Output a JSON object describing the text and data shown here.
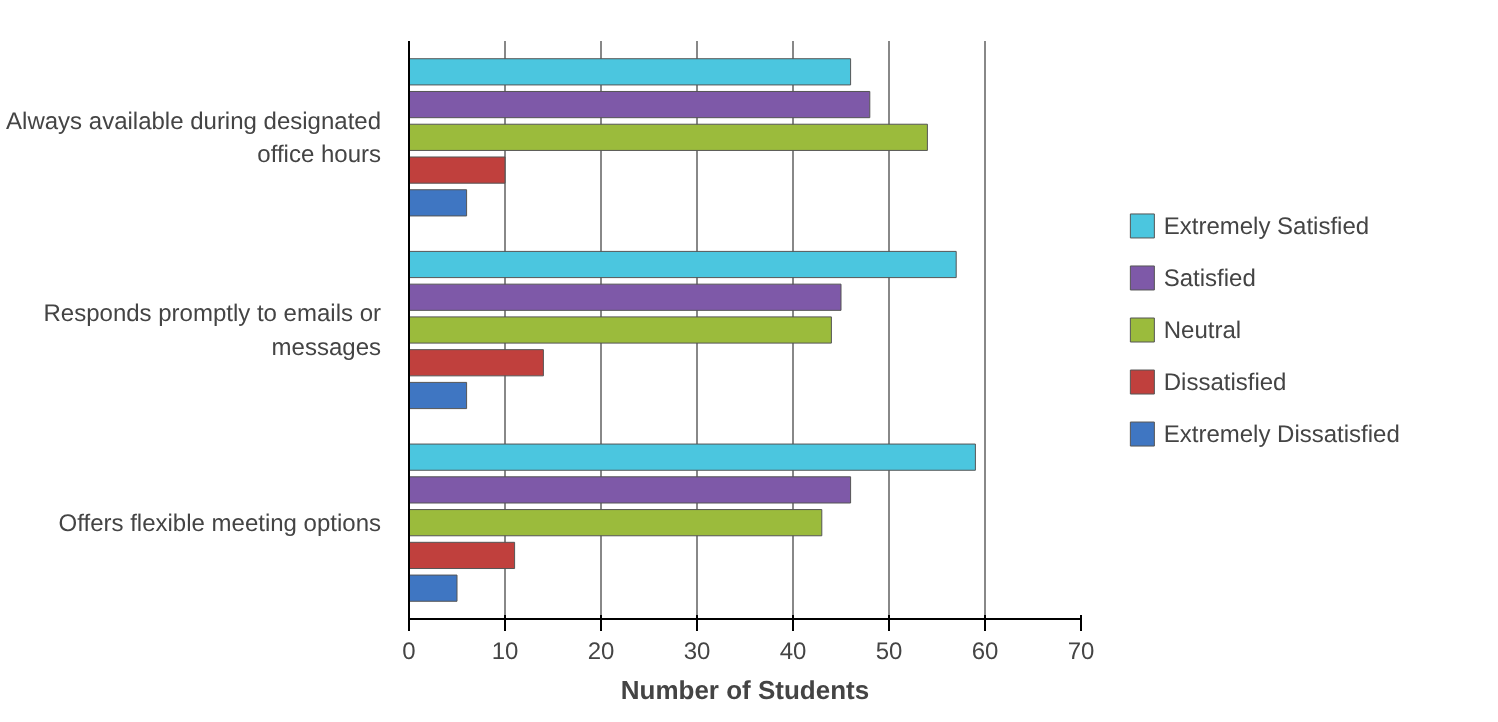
{
  "chart_data": {
    "type": "bar",
    "orientation": "horizontal",
    "xlabel": "Number of Students",
    "categories": [
      "Always available during designated office hours",
      "Responds promptly to emails or messages",
      "Offers flexible meeting options"
    ],
    "series": [
      {
        "name": "Extremely Satisfied",
        "color": "#4bc6df",
        "values": [
          46,
          57,
          59
        ]
      },
      {
        "name": "Satisfied",
        "color": "#7e59a8",
        "values": [
          48,
          45,
          46
        ]
      },
      {
        "name": "Neutral",
        "color": "#9bbb3c",
        "values": [
          54,
          44,
          43
        ]
      },
      {
        "name": "Dissatisfied",
        "color": "#c0403d",
        "values": [
          10,
          14,
          11
        ]
      },
      {
        "name": "Extremely Dissatisfied",
        "color": "#3f76c2",
        "values": [
          6,
          6,
          5
        ]
      }
    ],
    "xlim": [
      0,
      70
    ],
    "xticks": [
      0,
      10,
      20,
      30,
      40,
      50,
      60,
      70
    ],
    "grid": "x",
    "legend": "right"
  }
}
